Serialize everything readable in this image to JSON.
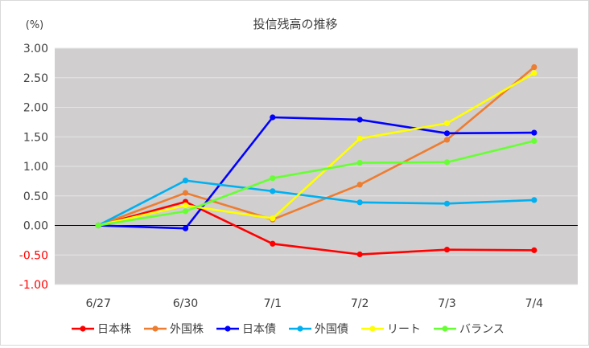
{
  "chart_data": {
    "type": "line",
    "title": "投信残高の推移",
    "unit_label": "(%)",
    "categories": [
      "6/27",
      "6/30",
      "7/1",
      "7/2",
      "7/3",
      "7/4"
    ],
    "ylim": [
      -1.0,
      3.0
    ],
    "y_ticks": [
      "3.00",
      "2.50",
      "2.00",
      "1.50",
      "1.00",
      "0.50",
      "0.00",
      "-0.50",
      "-1.00"
    ],
    "y_tick_values": [
      3.0,
      2.5,
      2.0,
      1.5,
      1.0,
      0.5,
      0.0,
      -0.5,
      -1.0
    ],
    "negative_tick_color": "#ff0000",
    "plot_background": "#d0cece",
    "grid": true,
    "legend_position": "bottom",
    "series": [
      {
        "name": "日本株",
        "color": "#ff0000",
        "values": [
          0.0,
          0.4,
          -0.31,
          -0.49,
          -0.41,
          -0.42
        ]
      },
      {
        "name": "外国株",
        "color": "#ed7d31",
        "values": [
          0.0,
          0.55,
          0.1,
          0.69,
          1.45,
          2.68
        ]
      },
      {
        "name": "日本債",
        "color": "#0000ff",
        "values": [
          0.0,
          -0.05,
          1.83,
          1.79,
          1.56,
          1.57
        ]
      },
      {
        "name": "外国債",
        "color": "#00b0f0",
        "values": [
          0.0,
          0.76,
          0.58,
          0.39,
          0.37,
          0.43
        ]
      },
      {
        "name": "リート",
        "color": "#ffff00",
        "values": [
          0.0,
          0.34,
          0.12,
          1.47,
          1.73,
          2.58
        ]
      },
      {
        "name": "バランス",
        "color": "#66ff33",
        "values": [
          0.0,
          0.24,
          0.8,
          1.06,
          1.07,
          1.43
        ]
      }
    ]
  }
}
